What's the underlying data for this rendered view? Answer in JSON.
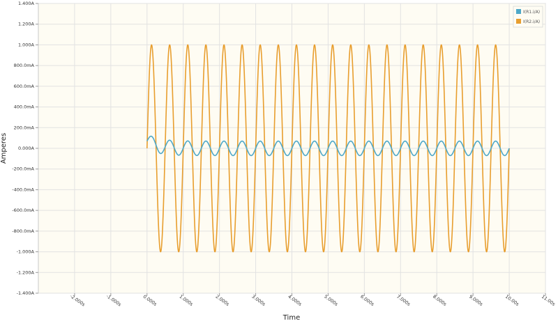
{
  "chart_data": {
    "type": "line",
    "xlabel": "Time",
    "ylabel": "Amperes",
    "xlim": [
      -3.0,
      11.0
    ],
    "ylim": [
      -1.4,
      1.4
    ],
    "x_ticks": [
      -2,
      -1,
      0,
      1,
      2,
      3,
      4,
      5,
      6,
      7,
      8,
      9,
      10,
      11
    ],
    "x_tick_labels": [
      "-2.000s",
      "-1.000s",
      "0.000s",
      "1.000s",
      "2.000s",
      "3.000s",
      "4.000s",
      "5.000s",
      "6.000s",
      "7.000s",
      "8.000s",
      "9.000s",
      "10.00s",
      "11.00s"
    ],
    "y_ticks": [
      1.4,
      1.2,
      1.0,
      0.8,
      0.6,
      0.4,
      0.2,
      0.0,
      -0.2,
      -0.4,
      -0.6,
      -0.8,
      -1.0,
      -1.2,
      -1.4
    ],
    "y_tick_labels": [
      "1.400A",
      "1.200A",
      "1.000A",
      "800.0mA",
      "600.0mA",
      "400.0mA",
      "200.0mA",
      "0.000A",
      "-200.0mA",
      "-400.0mA",
      "-600.0mA",
      "-800.0mA",
      "-1.000A",
      "-1.200A",
      "-1.400A"
    ],
    "grid": true,
    "legend_position": "top-right",
    "series": [
      {
        "name": "I(R1.i/A)",
        "color": "#4ea8c8",
        "waveform": "damped-sine",
        "x_start": 0,
        "x_end": 10,
        "frequency_hz": 2,
        "amplitude": 0.07,
        "offset_initial": 0.07,
        "offset_final": 0.0,
        "decay_time": 0.3
      },
      {
        "name": "I(R2.i/A)",
        "color": "#e89e2e",
        "waveform": "sine",
        "x_start": 0,
        "x_end": 10,
        "frequency_hz": 2,
        "amplitude": 1.0,
        "offset": 0.0
      }
    ]
  }
}
